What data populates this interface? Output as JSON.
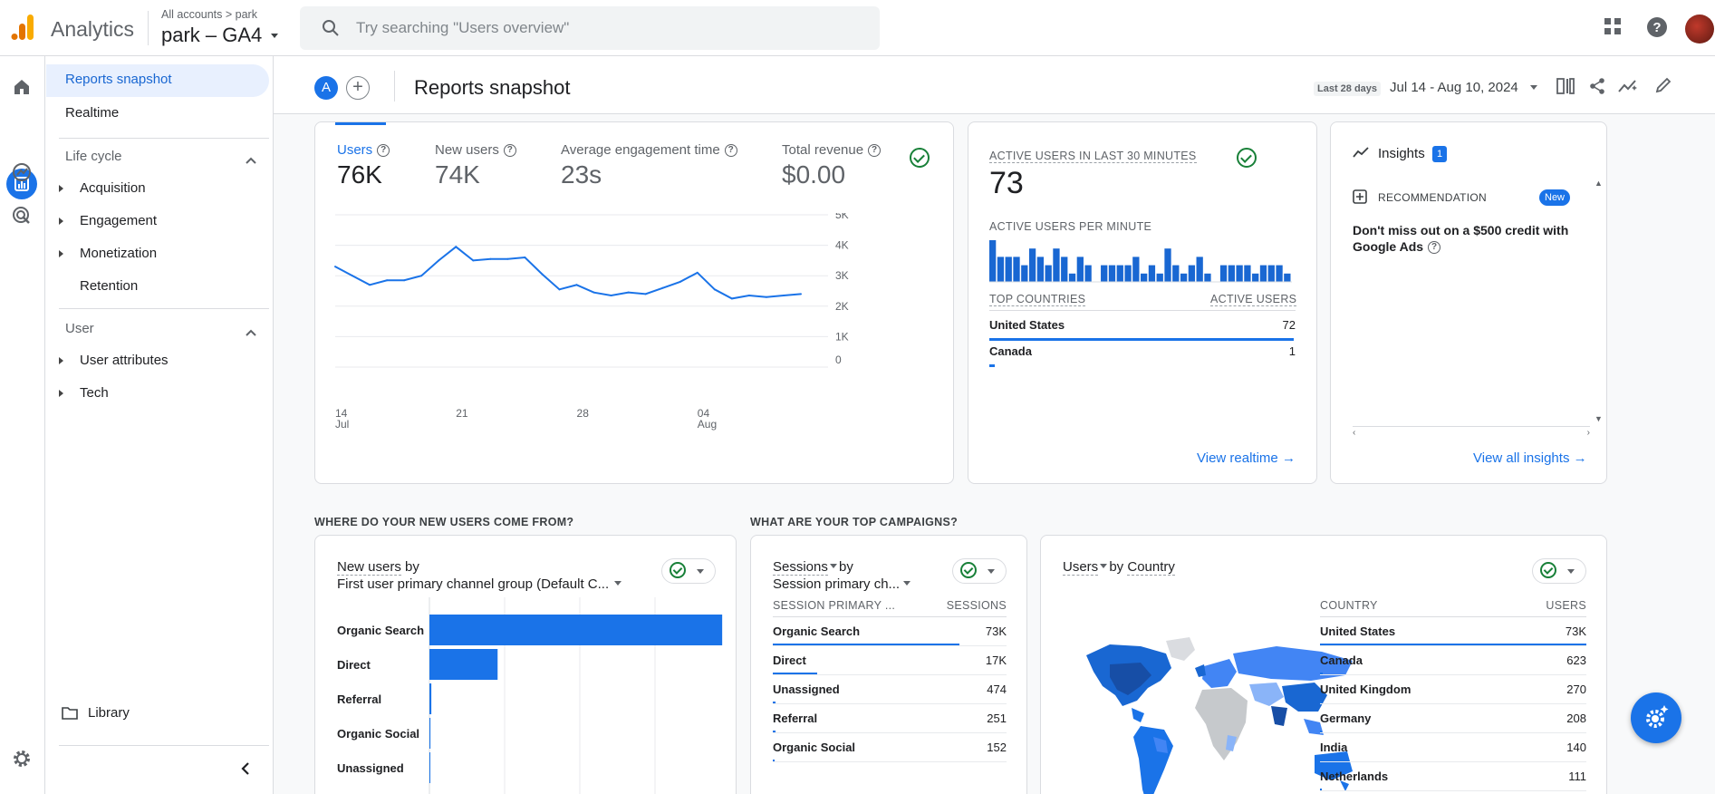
{
  "header": {
    "app_name": "Analytics",
    "breadcrumb": "All accounts > park",
    "property": "park – GA4",
    "search_placeholder": "Try searching \"Users overview\""
  },
  "nav": {
    "reports_snapshot": "Reports snapshot",
    "realtime": "Realtime",
    "lifecycle": "Life cycle",
    "acquisition": "Acquisition",
    "engagement": "Engagement",
    "monetization": "Monetization",
    "retention": "Retention",
    "user": "User",
    "user_attributes": "User attributes",
    "tech": "Tech",
    "library": "Library"
  },
  "subheader": {
    "compare_label": "A",
    "title": "Reports snapshot",
    "date_label": "Last 28 days",
    "date_range": "Jul 14 - Aug 10, 2024"
  },
  "metrics": [
    {
      "label": "Users",
      "value": "76K"
    },
    {
      "label": "New users",
      "value": "74K"
    },
    {
      "label": "Average engagement time",
      "value": "23s"
    },
    {
      "label": "Total revenue",
      "value": "$0.00"
    }
  ],
  "chart_data": [
    {
      "type": "line",
      "x": [
        "Jul 14",
        "Jul 15",
        "Jul 16",
        "Jul 17",
        "Jul 18",
        "Jul 19",
        "Jul 20",
        "Jul 21",
        "Jul 22",
        "Jul 23",
        "Jul 24",
        "Jul 25",
        "Jul 26",
        "Jul 27",
        "Jul 28",
        "Jul 29",
        "Jul 30",
        "Jul 31",
        "Aug 1",
        "Aug 2",
        "Aug 3",
        "Aug 4",
        "Aug 5",
        "Aug 6",
        "Aug 7",
        "Aug 8",
        "Aug 9",
        "Aug 10"
      ],
      "series": [
        {
          "name": "Users",
          "values": [
            3300,
            3000,
            2700,
            2850,
            2850,
            3000,
            3500,
            3950,
            3500,
            3550,
            3550,
            3600,
            3050,
            2550,
            2700,
            2450,
            2350,
            2450,
            2400,
            2600,
            2800,
            3100,
            2550,
            2250,
            2350,
            2300,
            2350,
            2400
          ]
        }
      ],
      "y_ticks": [
        "5K",
        "4K",
        "3K",
        "2K",
        "1K",
        "0"
      ],
      "x_ticks": [
        {
          "day": "14",
          "month": "Jul"
        },
        {
          "day": "21",
          "month": ""
        },
        {
          "day": "28",
          "month": ""
        },
        {
          "day": "04",
          "month": "Aug"
        }
      ],
      "ylim": [
        0,
        5000
      ]
    },
    {
      "type": "bar",
      "title": "ACTIVE USERS PER MINUTE",
      "values": [
        5,
        3,
        3,
        3,
        2,
        4,
        3,
        2,
        4,
        3,
        1,
        3,
        2,
        0,
        2,
        2,
        2,
        2,
        3,
        1,
        2,
        1,
        4,
        2,
        1,
        2,
        3,
        1,
        0,
        2,
        2,
        2,
        2,
        1,
        2,
        2,
        2,
        1
      ],
      "ylim": [
        0,
        5
      ]
    },
    {
      "type": "bar",
      "orientation": "horizontal",
      "categories": [
        "Organic Search",
        "Direct",
        "Referral",
        "Organic Social",
        "Unassigned"
      ],
      "values": [
        73000,
        17000,
        474,
        251,
        152
      ],
      "xlim": [
        0,
        75000
      ]
    }
  ],
  "realtime": {
    "title": "ACTIVE USERS IN LAST 30 MINUTES",
    "value": "73",
    "per_minute_label": "ACTIVE USERS PER MINUTE",
    "col1": "TOP COUNTRIES",
    "col2": "ACTIVE USERS",
    "rows": [
      {
        "name": "United States",
        "value": "72"
      },
      {
        "name": "Canada",
        "value": "1"
      }
    ],
    "link": "View realtime"
  },
  "insights": {
    "title": "Insights",
    "count": "1",
    "rec_label": "RECOMMENDATION",
    "badge": "New",
    "text": "Don't miss out on a $500 credit with Google Ads",
    "link": "View all insights"
  },
  "sections": {
    "new_users": "WHERE DO YOUR NEW USERS COME FROM?",
    "campaigns": "WHAT ARE YOUR TOP CAMPAIGNS?"
  },
  "new_users_card": {
    "title_a": "New users",
    "title_b": " by",
    "subtitle": "First user primary channel group (Default C..."
  },
  "sessions_card": {
    "title_a": "Sessions",
    "title_b": " by",
    "subtitle": "Session primary ch...",
    "col1": "SESSION PRIMARY ...",
    "col2": "SESSIONS",
    "rows": [
      {
        "name": "Organic Search",
        "value": "73K",
        "share": 0.8
      },
      {
        "name": "Direct",
        "value": "17K",
        "share": 0.19
      },
      {
        "name": "Unassigned",
        "value": "474",
        "share": 0.01
      },
      {
        "name": "Referral",
        "value": "251",
        "share": 0.01
      },
      {
        "name": "Organic Social",
        "value": "152",
        "share": 0.005
      }
    ]
  },
  "country_card": {
    "title_a": "Users",
    "title_b": " by ",
    "title_c": "Country",
    "col1": "COUNTRY",
    "col2": "USERS",
    "rows": [
      {
        "name": "United States",
        "value": "73K",
        "share": 1.0
      },
      {
        "name": "Canada",
        "value": "623",
        "share": 0.01
      },
      {
        "name": "United Kingdom",
        "value": "270",
        "share": 0.005
      },
      {
        "name": "Germany",
        "value": "208",
        "share": 0.004
      },
      {
        "name": "India",
        "value": "140",
        "share": 0.003
      },
      {
        "name": "Netherlands",
        "value": "111",
        "share": 0.002
      }
    ]
  },
  "colors": {
    "accent": "#1a73e8",
    "success": "#188038"
  }
}
